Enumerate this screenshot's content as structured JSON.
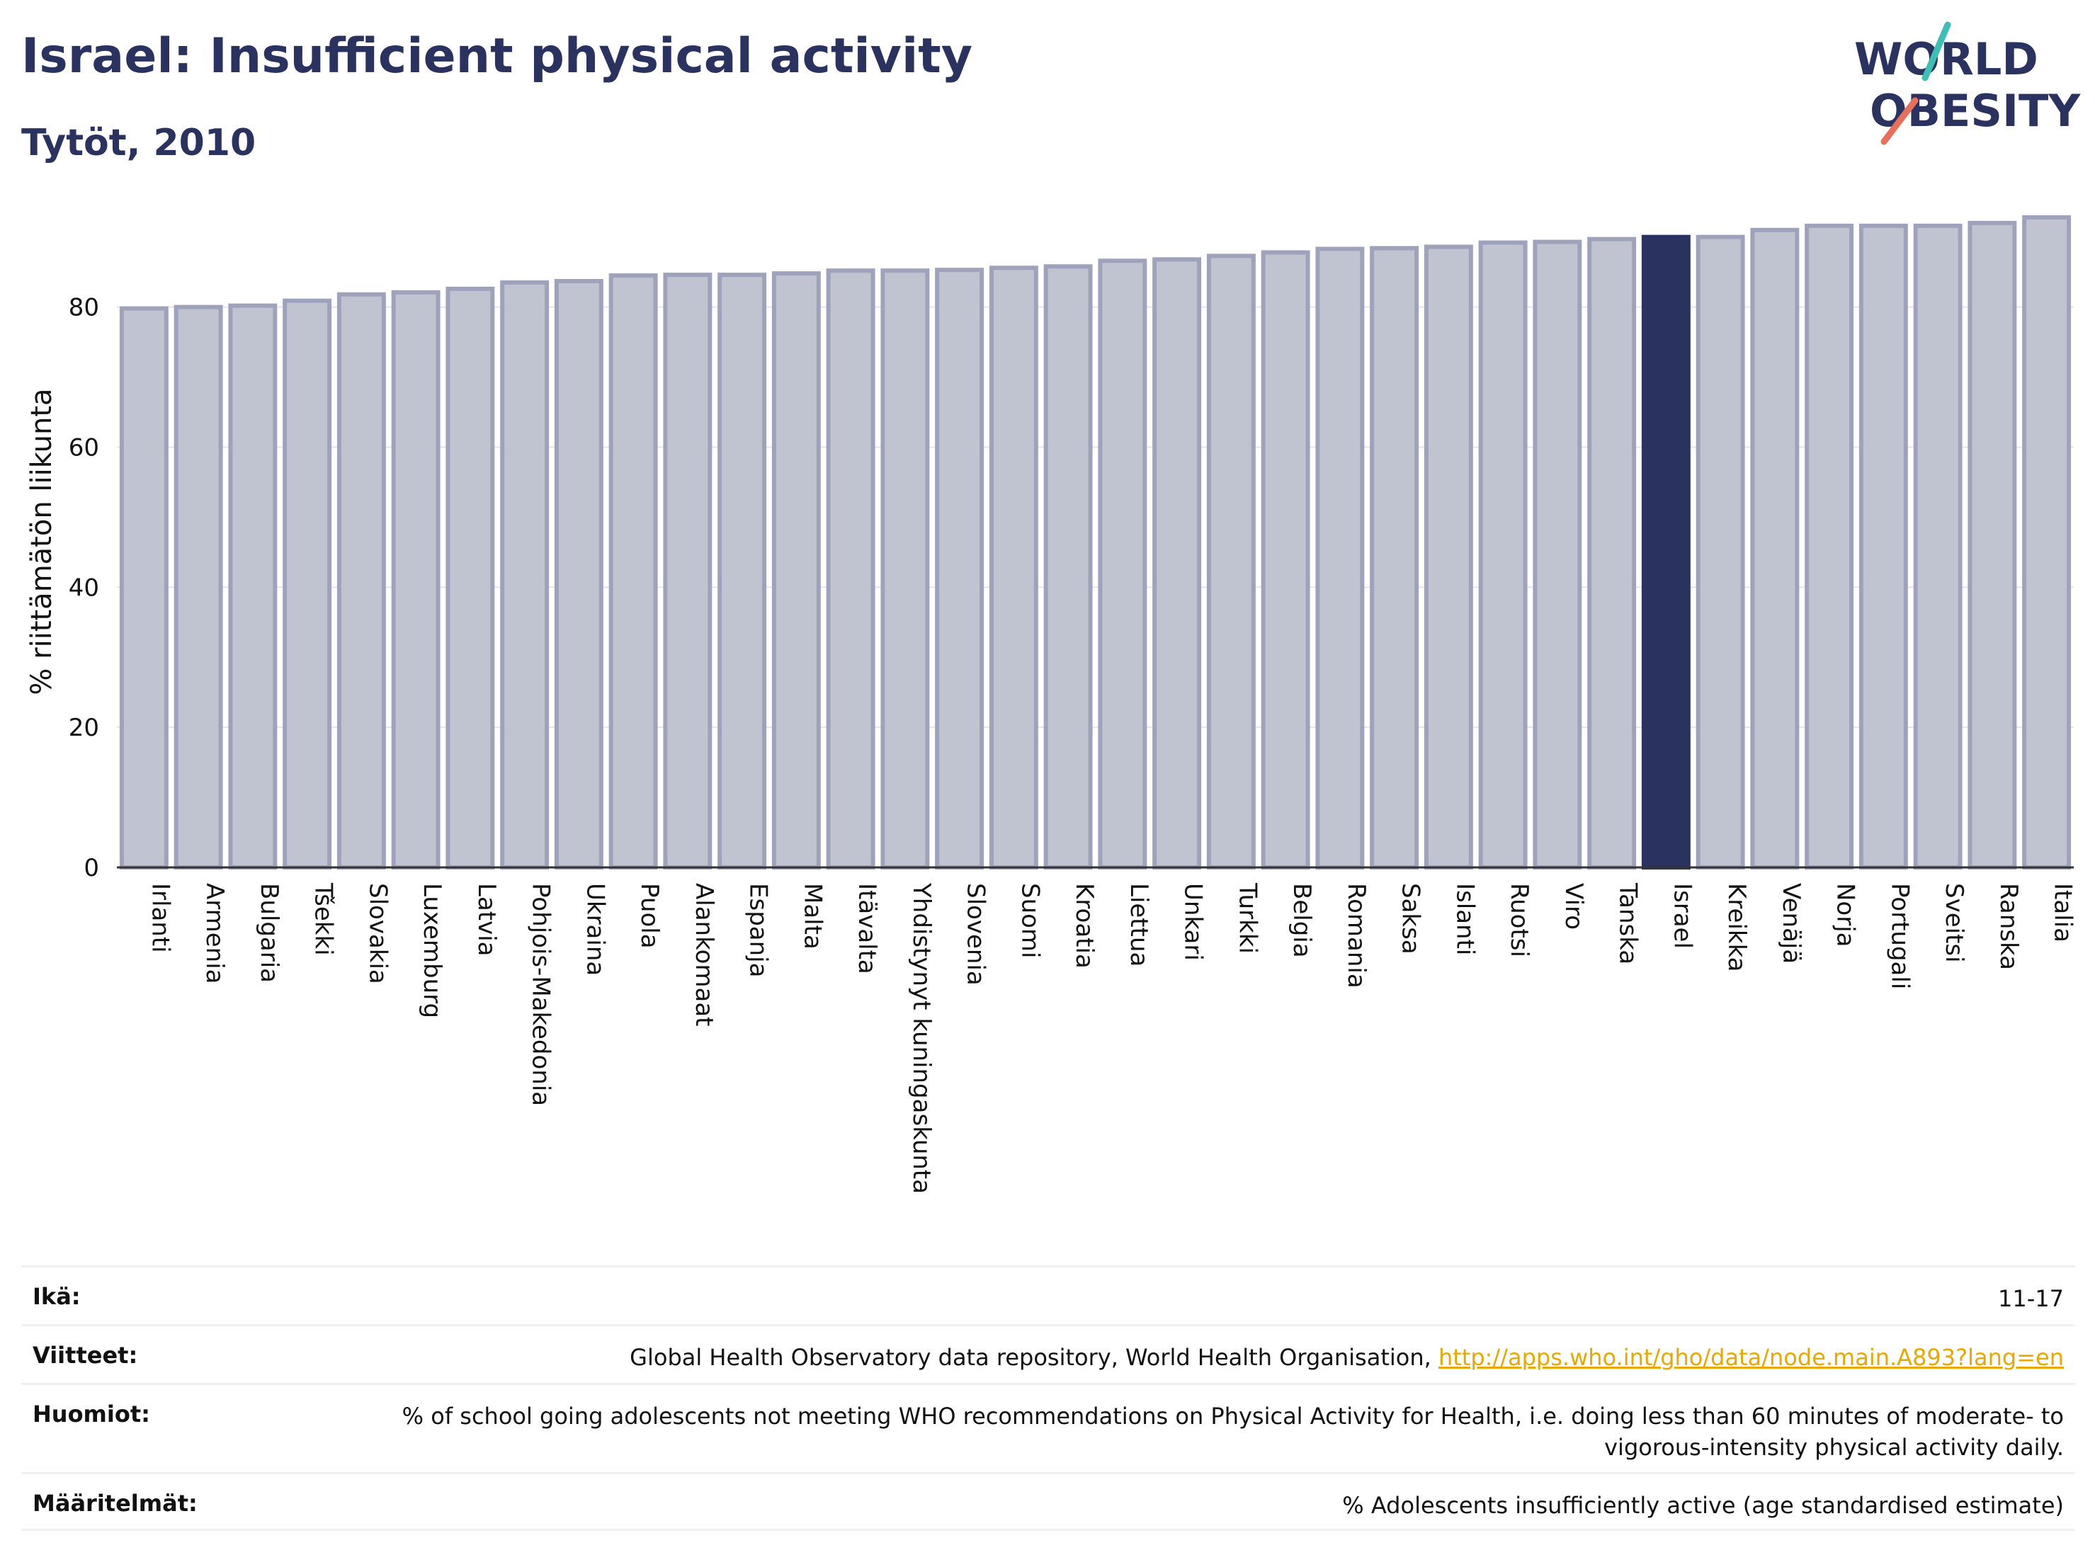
{
  "header": {
    "title": "Israel: Insufficient physical activity",
    "subtitle": "Tytöt, 2010"
  },
  "logo": {
    "line1": "WORLD",
    "line2": "OBESITY",
    "accent_colors": [
      "#3cbfb4",
      "#e8705a"
    ]
  },
  "colors": {
    "bar": "#c0c3d0",
    "bar_stroke": "#9ea3bb",
    "highlight": "#2a3360",
    "grid": "#e3e5ec",
    "text": "#2a3360"
  },
  "chart_data": {
    "type": "bar",
    "ylabel": "% riittämätön liikunta",
    "ylim": [
      0,
      93
    ],
    "yticks": [
      0,
      20,
      40,
      60,
      80
    ],
    "highlight": "Israel",
    "categories": [
      "Irlanti",
      "Armenia",
      "Bulgaria",
      "Tšekki",
      "Slovakia",
      "Luxemburg",
      "Latvia",
      "Pohjois-Makedonia",
      "Ukraina",
      "Puola",
      "Alankomaat",
      "Espanja",
      "Malta",
      "Itävalta",
      "Yhdistynyt kuningaskunta",
      "Slovenia",
      "Suomi",
      "Kroatia",
      "Liettua",
      "Unkari",
      "Turkki",
      "Belgia",
      "Romania",
      "Saksa",
      "Islanti",
      "Ruotsi",
      "Viro",
      "Tanska",
      "Israel",
      "Kreikka",
      "Venäjä",
      "Norja",
      "Portugali",
      "Sveitsi",
      "Ranska",
      "Italia"
    ],
    "values": [
      79.8,
      80.0,
      80.2,
      80.9,
      81.8,
      82.1,
      82.6,
      83.5,
      83.7,
      84.5,
      84.6,
      84.6,
      84.8,
      85.2,
      85.2,
      85.3,
      85.6,
      85.8,
      86.6,
      86.8,
      87.3,
      87.8,
      88.3,
      88.4,
      88.6,
      89.2,
      89.3,
      89.7,
      90.0,
      90.0,
      91.0,
      91.6,
      91.6,
      91.6,
      92.0,
      92.8
    ]
  },
  "info": [
    {
      "label": "Ikä:",
      "value": "11-17"
    },
    {
      "label": "Viitteet:",
      "value": "Global Health Observatory data repository, World Health Organisation, ",
      "link": "http://apps.who.int/gho/data/node.main.A893?lang=en"
    },
    {
      "label": "Huomiot:",
      "value": "% of school going adolescents not meeting WHO recommendations on Physical Activity for Health, i.e. doing less than 60 minutes of moderate- to vigorous-intensity physical activity daily."
    },
    {
      "label": "Määritelmät:",
      "value": "% Adolescents insufficiently active (age standardised estimate)"
    }
  ]
}
